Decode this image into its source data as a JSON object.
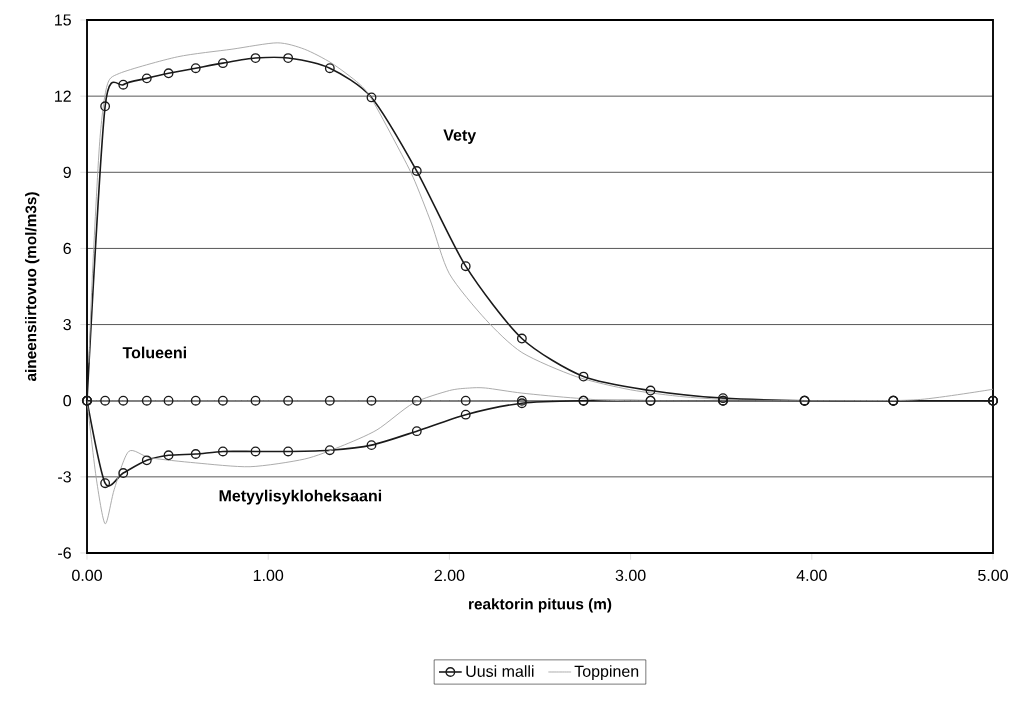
{
  "chart_data": {
    "type": "line",
    "xlabel": "reaktorin pituus (m)",
    "ylabel": "aineensiirtovuo (mol/m3s)",
    "xlim": [
      0,
      5
    ],
    "ylim": [
      -6,
      15
    ],
    "xticks": [
      {
        "value": 0,
        "label": "0.00"
      },
      {
        "value": 1,
        "label": "1.00"
      },
      {
        "value": 2,
        "label": "2.00"
      },
      {
        "value": 3,
        "label": "3.00"
      },
      {
        "value": 4,
        "label": "4.00"
      },
      {
        "value": 5,
        "label": "5.00"
      }
    ],
    "yticks": [
      -6,
      -3,
      0,
      3,
      6,
      9,
      12,
      15
    ],
    "grid": "y",
    "legend": "bottom",
    "line_style": "solid",
    "series": [
      {
        "name": "Uusi malli",
        "color": "#1a1a1a",
        "marker": "circle",
        "x": [
          0,
          0.1,
          0.2,
          0.33,
          0.45,
          0.6,
          0.75,
          0.93,
          1.11,
          1.34,
          1.57,
          1.82,
          2.09,
          2.4,
          2.74,
          3.11,
          3.51,
          3.96,
          4.45,
          5.0
        ],
        "values": [
          0,
          11.6,
          12.45,
          12.7,
          12.9,
          13.1,
          13.3,
          13.5,
          13.5,
          13.1,
          11.95,
          9.05,
          5.3,
          2.45,
          0.95,
          0.4,
          0.1,
          0,
          0,
          0
        ]
      },
      {
        "name": "Toppinen",
        "color": "#a6a6a6",
        "marker": "none",
        "x": [
          0.01,
          0.03,
          0.07,
          0.11,
          0.18,
          0.5,
          0.8,
          1.05,
          1.2,
          1.35,
          1.5,
          1.57,
          1.7,
          1.8,
          1.9,
          2.0,
          2.2,
          2.4,
          2.7,
          3.0,
          3.3,
          3.6,
          4.0,
          5.0
        ],
        "values": [
          1.5,
          5,
          10.2,
          12.4,
          12.9,
          13.55,
          13.85,
          14.1,
          13.85,
          13.3,
          12.5,
          11.9,
          10.2,
          8.8,
          7.0,
          5.0,
          3.2,
          1.9,
          0.95,
          0.43,
          0.15,
          0.03,
          0,
          0
        ]
      },
      {
        "color": "#1a1a1a",
        "marker": "circle",
        "x": [
          0,
          0.1,
          0.2,
          0.33,
          0.45,
          0.6,
          0.75,
          0.93,
          1.11,
          1.34,
          1.57,
          1.82,
          2.09,
          2.4,
          2.74,
          3.11,
          3.51,
          3.96,
          4.45,
          5.0
        ],
        "values": [
          0,
          0,
          0,
          0,
          0,
          0,
          0,
          0,
          0,
          0,
          0,
          0,
          0,
          0,
          0,
          0,
          0,
          0,
          0,
          0
        ]
      },
      {
        "color": "#a6a6a6",
        "marker": "none",
        "x": [
          0.02,
          1,
          2,
          3,
          4,
          4.95
        ],
        "values": [
          0,
          0,
          0,
          0,
          0,
          0
        ]
      },
      {
        "color": "#1a1a1a",
        "marker": "circle",
        "x": [
          0,
          0.1,
          0.2,
          0.33,
          0.45,
          0.6,
          0.75,
          0.93,
          1.11,
          1.34,
          1.57,
          1.82,
          2.09,
          2.4,
          2.74,
          3.11,
          3.51,
          3.96,
          4.45,
          5.0
        ],
        "values": [
          0,
          -3.25,
          -2.85,
          -2.35,
          -2.15,
          -2.1,
          -2.0,
          -2.0,
          -2.0,
          -1.95,
          -1.75,
          -1.2,
          -0.55,
          -0.1,
          0,
          0,
          0,
          0,
          0,
          0
        ]
      },
      {
        "color": "#a6a6a6",
        "marker": "none",
        "x": [
          0,
          0.05,
          0.1,
          0.15,
          0.23,
          0.35,
          0.6,
          0.9,
          1.2,
          1.4,
          1.6,
          1.8,
          2.0,
          2.11,
          2.2,
          2.4,
          2.7,
          3.0,
          4.2,
          4.6,
          5.0
        ],
        "values": [
          0,
          -3,
          -4.85,
          -3.5,
          -2.0,
          -2.25,
          -2.45,
          -2.6,
          -2.3,
          -1.8,
          -1.15,
          -0.1,
          0.4,
          0.5,
          0.5,
          0.3,
          0.1,
          0,
          0,
          0.05,
          0.45
        ]
      }
    ],
    "annotations": [
      "Vety",
      "Tolueeni",
      "Metyylisykloheksaani"
    ]
  }
}
